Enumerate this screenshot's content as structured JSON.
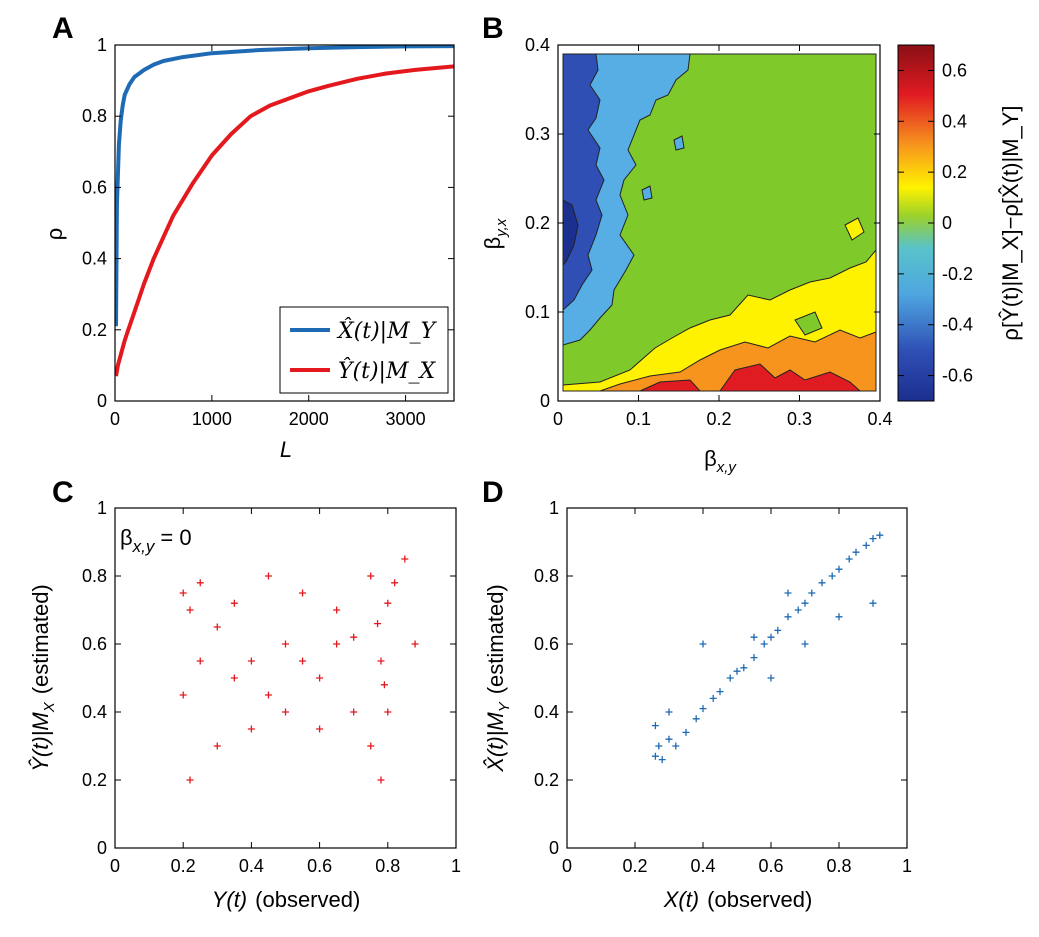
{
  "panels": {
    "a": {
      "letter": "A"
    },
    "b": {
      "letter": "B"
    },
    "c": {
      "letter": "C"
    },
    "d": {
      "letter": "D"
    }
  },
  "chart_data": [
    {
      "type": "line",
      "panel": "A",
      "xlabel": "L",
      "ylabel": "ρ",
      "xlim": [
        0,
        3500
      ],
      "ylim": [
        0,
        1
      ],
      "xticks": [
        "0",
        "1000",
        "2000",
        "3000"
      ],
      "yticks": [
        "0",
        "0.2",
        "0.4",
        "0.6",
        "0.8",
        "1"
      ],
      "legend_position": "bottom-right",
      "series": [
        {
          "name": "X̂(t)|M_Y",
          "color": "#1f6ab5",
          "x": [
            10,
            20,
            40,
            60,
            80,
            100,
            150,
            200,
            300,
            400,
            500,
            700,
            1000,
            1500,
            2000,
            2500,
            3000,
            3500
          ],
          "y": [
            0.21,
            0.55,
            0.72,
            0.79,
            0.83,
            0.86,
            0.89,
            0.91,
            0.93,
            0.945,
            0.955,
            0.966,
            0.977,
            0.986,
            0.991,
            0.994,
            0.996,
            0.997
          ]
        },
        {
          "name": "Ŷ(t)|M_X",
          "color": "#e3191e",
          "x": [
            10,
            30,
            60,
            100,
            150,
            200,
            300,
            400,
            500,
            600,
            800,
            1000,
            1200,
            1400,
            1600,
            1800,
            2000,
            2200,
            2500,
            2800,
            3100,
            3500
          ],
          "y": [
            0.07,
            0.1,
            0.13,
            0.17,
            0.21,
            0.25,
            0.33,
            0.4,
            0.46,
            0.52,
            0.61,
            0.69,
            0.75,
            0.8,
            0.83,
            0.85,
            0.87,
            0.885,
            0.905,
            0.92,
            0.93,
            0.94
          ]
        }
      ]
    },
    {
      "type": "heatmap",
      "panel": "B",
      "xlabel": "β",
      "xlabel_sub": "x,y",
      "ylabel": "β",
      "ylabel_sub": "y,x",
      "xlim": [
        0,
        0.4
      ],
      "ylim": [
        0,
        0.4
      ],
      "xticks": [
        "0",
        "0.1",
        "0.2",
        "0.3",
        "0.4"
      ],
      "yticks": [
        "0",
        "0.1",
        "0.2",
        "0.3",
        "0.4"
      ],
      "colorbar": {
        "label": "ρ[Ŷ(t)|M_X]−ρ[X̂(t)|M_Y]",
        "range": [
          -0.7,
          0.7
        ],
        "ticks": [
          "0.6",
          "0.4",
          "0.2",
          "0",
          "-0.2",
          "-0.4",
          "-0.6"
        ],
        "colors": [
          "#1b2f8f",
          "#3f63c3",
          "#53b0e6",
          "#7ec82b",
          "#fff200",
          "#f7941d",
          "#e11b22",
          "#8b0f15"
        ]
      }
    },
    {
      "type": "scatter",
      "panel": "C",
      "annotation": "β",
      "annotation_sub": "x,y",
      "annotation_value": "= 0",
      "xlabel": "Y(t)",
      "xlabel_suffix": "(observed)",
      "ylabel": "Ŷ(t)|M",
      "ylabel_sub": "X",
      "ylabel_suffix": "(estimated)",
      "xlim": [
        0,
        1
      ],
      "ylim": [
        0,
        1
      ],
      "xticks": [
        "0",
        "0.2",
        "0.4",
        "0.6",
        "0.8",
        "1"
      ],
      "yticks": [
        "0",
        "0.2",
        "0.4",
        "0.6",
        "0.8",
        "1"
      ],
      "color": "#e3191e",
      "marker": "+",
      "points": [
        [
          0.2,
          0.75
        ],
        [
          0.22,
          0.7
        ],
        [
          0.25,
          0.78
        ],
        [
          0.3,
          0.65
        ],
        [
          0.35,
          0.72
        ],
        [
          0.4,
          0.55
        ],
        [
          0.45,
          0.8
        ],
        [
          0.5,
          0.6
        ],
        [
          0.55,
          0.75
        ],
        [
          0.6,
          0.5
        ],
        [
          0.65,
          0.7
        ],
        [
          0.7,
          0.62
        ],
        [
          0.75,
          0.8
        ],
        [
          0.78,
          0.55
        ],
        [
          0.8,
          0.72
        ],
        [
          0.85,
          0.85
        ],
        [
          0.88,
          0.6
        ],
        [
          0.2,
          0.45
        ],
        [
          0.22,
          0.2
        ],
        [
          0.3,
          0.3
        ],
        [
          0.4,
          0.35
        ],
        [
          0.5,
          0.4
        ],
        [
          0.6,
          0.35
        ],
        [
          0.7,
          0.4
        ],
        [
          0.75,
          0.3
        ],
        [
          0.78,
          0.2
        ],
        [
          0.8,
          0.4
        ],
        [
          0.35,
          0.5
        ],
        [
          0.45,
          0.45
        ],
        [
          0.55,
          0.55
        ],
        [
          0.65,
          0.6
        ],
        [
          0.25,
          0.55
        ],
        [
          0.82,
          0.78
        ],
        [
          0.77,
          0.66
        ],
        [
          0.79,
          0.48
        ]
      ]
    },
    {
      "type": "scatter",
      "panel": "D",
      "xlabel": "X(t)",
      "xlabel_suffix": "(observed)",
      "ylabel": "X̂(t)|M",
      "ylabel_sub": "Y",
      "ylabel_suffix": "(estimated)",
      "xlim": [
        0,
        1
      ],
      "ylim": [
        0,
        1
      ],
      "xticks": [
        "0",
        "0.2",
        "0.4",
        "0.6",
        "0.8",
        "1"
      ],
      "yticks": [
        "0",
        "0.2",
        "0.4",
        "0.6",
        "0.8",
        "1"
      ],
      "color": "#1f6ab5",
      "marker": "+",
      "points": [
        [
          0.26,
          0.27
        ],
        [
          0.27,
          0.3
        ],
        [
          0.28,
          0.26
        ],
        [
          0.3,
          0.32
        ],
        [
          0.32,
          0.3
        ],
        [
          0.35,
          0.34
        ],
        [
          0.38,
          0.38
        ],
        [
          0.4,
          0.41
        ],
        [
          0.43,
          0.44
        ],
        [
          0.45,
          0.46
        ],
        [
          0.48,
          0.5
        ],
        [
          0.5,
          0.52
        ],
        [
          0.52,
          0.53
        ],
        [
          0.55,
          0.56
        ],
        [
          0.58,
          0.6
        ],
        [
          0.6,
          0.62
        ],
        [
          0.62,
          0.64
        ],
        [
          0.65,
          0.68
        ],
        [
          0.68,
          0.7
        ],
        [
          0.7,
          0.72
        ],
        [
          0.72,
          0.75
        ],
        [
          0.75,
          0.78
        ],
        [
          0.78,
          0.8
        ],
        [
          0.8,
          0.82
        ],
        [
          0.83,
          0.85
        ],
        [
          0.85,
          0.87
        ],
        [
          0.88,
          0.89
        ],
        [
          0.9,
          0.91
        ],
        [
          0.92,
          0.92
        ],
        [
          0.26,
          0.36
        ],
        [
          0.3,
          0.4
        ],
        [
          0.4,
          0.6
        ],
        [
          0.6,
          0.5
        ],
        [
          0.7,
          0.6
        ],
        [
          0.8,
          0.68
        ],
        [
          0.9,
          0.72
        ],
        [
          0.65,
          0.75
        ],
        [
          0.55,
          0.62
        ]
      ]
    }
  ]
}
